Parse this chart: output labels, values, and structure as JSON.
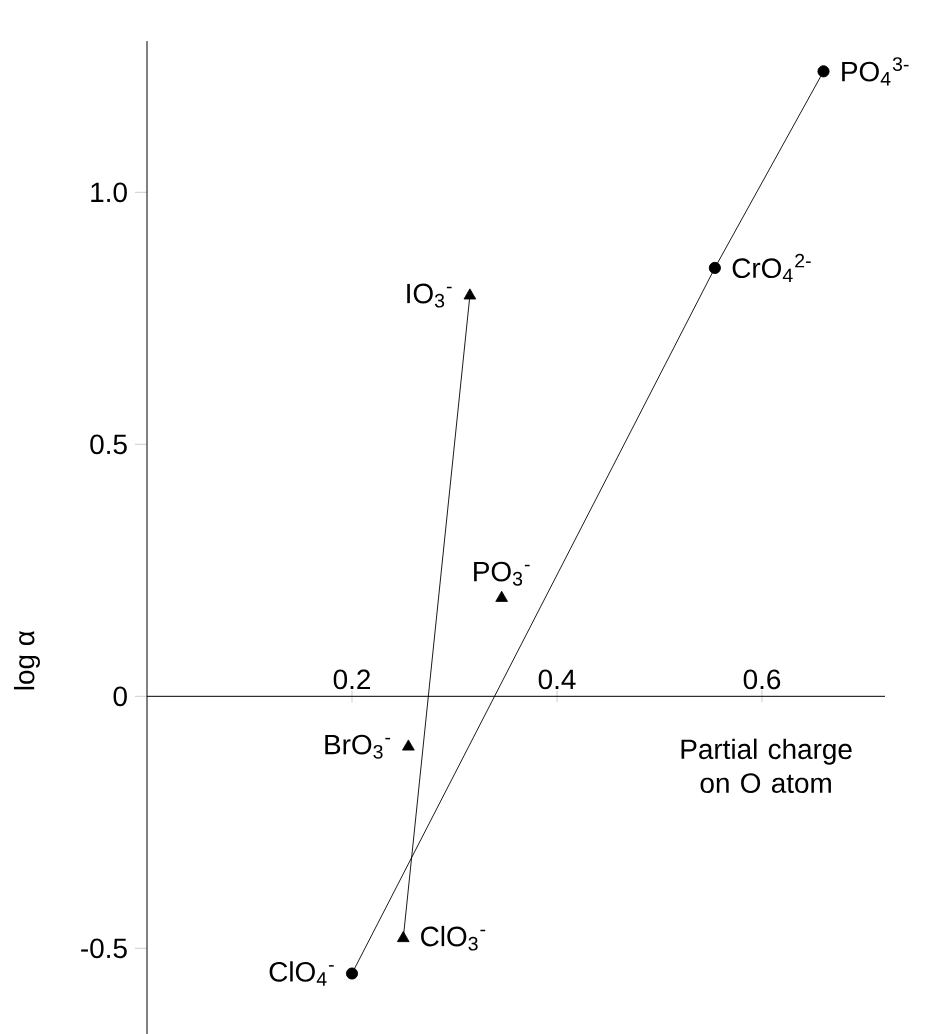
{
  "chart_data": {
    "type": "scatter",
    "xlabel": "Partial charge on O atom",
    "ylabel": "log α",
    "xlim": [
      0,
      0.72
    ],
    "ylim": [
      -0.67,
      1.3
    ],
    "xticks": [
      0.2,
      0.4,
      0.6
    ],
    "yticks": [
      -0.5,
      0,
      0.5,
      {
        "value": 1,
        "label": "1.0"
      }
    ],
    "series": [
      {
        "type": "line",
        "marker": "circle",
        "color": "#000000",
        "x": [
          0.2,
          0.554,
          0.66
        ],
        "values": [
          -0.55,
          0.85,
          1.24
        ]
      },
      {
        "marker": "triangle",
        "color": "#000000",
        "x": [
          0.25,
          0.255,
          0.315
        ],
        "values": [
          -0.48,
          -0.1,
          0.795
        ]
      },
      {
        "type": "line",
        "marker": "none",
        "color": "#000000",
        "x": [
          0.25,
          0.315
        ],
        "values": [
          -0.48,
          0.795
        ]
      },
      {
        "marker": "triangle",
        "color": "#000000",
        "x": [
          0.346
        ],
        "values": [
          0.195
        ]
      }
    ],
    "annotations": [
      {
        "text": "PO$_{4}$$^{3-}$",
        "x": 0.66,
        "y": 1.24
      },
      {
        "text": "CrO$_{4}$$^{2-}$",
        "x": 0.554,
        "y": 0.85
      },
      {
        "text": "IO$_{3}$$^{-}$",
        "x": 0.315,
        "y": 0.795
      },
      {
        "text": "PO$_{3}$$^{-}$",
        "x": 0.346,
        "y": 0.195
      },
      {
        "text": "BrO$_{3}$$^{-}$",
        "x": 0.255,
        "y": -0.1
      },
      {
        "text": "ClO$_{3}$$^{-}$",
        "x": 0.25,
        "y": -0.48
      },
      {
        "text": "ClO$_{4}$$^{-}$",
        "x": 0.2,
        "y": -0.55
      }
    ]
  }
}
